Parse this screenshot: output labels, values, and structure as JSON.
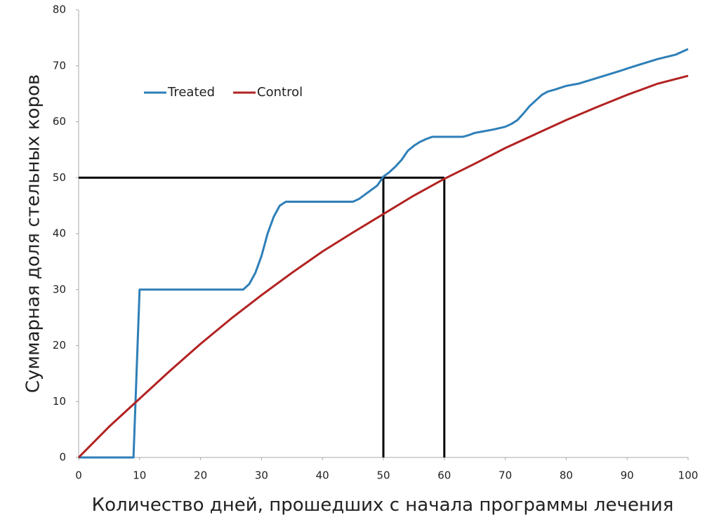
{
  "chart_data": {
    "type": "line",
    "x_label": "Количество дней, прошедших с начала программы лечения",
    "y_label": "Суммарная доля стельных коров",
    "xlim": [
      0,
      100
    ],
    "xticks": [
      0,
      10,
      20,
      30,
      40,
      50,
      60,
      70,
      80,
      90,
      100
    ],
    "ylim": [
      0,
      80
    ],
    "yticks": [
      0,
      10,
      20,
      30,
      40,
      50,
      60,
      70,
      80
    ],
    "grid": false,
    "legend": "upper left",
    "reference_lines": {
      "y": 50,
      "x": [
        50,
        60
      ],
      "color": "#000000"
    },
    "series": [
      {
        "name": "Treated",
        "color": "#2e7fb8",
        "x": [
          0,
          9,
          10,
          27,
          28,
          29,
          30,
          31,
          32,
          33,
          34,
          45,
          46,
          47,
          48,
          49,
          50,
          51,
          52,
          53,
          54,
          55,
          56,
          57,
          58,
          63,
          64,
          65,
          66,
          68,
          70,
          71,
          72,
          73,
          74,
          75,
          76,
          77,
          78,
          80,
          82,
          85,
          88,
          90,
          92,
          95,
          98,
          100
        ],
        "values": [
          0,
          0,
          30,
          30,
          31,
          33,
          36,
          40,
          43,
          45,
          45.7,
          45.7,
          46.2,
          47,
          47.8,
          48.6,
          50.2,
          51,
          52,
          53.2,
          54.8,
          55.7,
          56.4,
          56.9,
          57.3,
          57.3,
          57.6,
          58,
          58.2,
          58.6,
          59.1,
          59.6,
          60.3,
          61.5,
          62.8,
          63.8,
          64.8,
          65.4,
          65.7,
          66.4,
          66.8,
          67.8,
          68.8,
          69.5,
          70.2,
          71.2,
          72,
          73
        ]
      },
      {
        "name": "Control",
        "color": "#b22222",
        "x": [
          0,
          5,
          10,
          15,
          20,
          25,
          30,
          35,
          40,
          45,
          50,
          55,
          60,
          65,
          70,
          75,
          80,
          85,
          90,
          95,
          100
        ],
        "values": [
          0,
          5.5,
          10.5,
          15.5,
          20.3,
          24.8,
          29,
          33,
          36.8,
          40.2,
          43.5,
          46.8,
          49.8,
          52.5,
          55.3,
          57.8,
          60.3,
          62.6,
          64.8,
          66.8,
          68.2
        ]
      }
    ]
  }
}
